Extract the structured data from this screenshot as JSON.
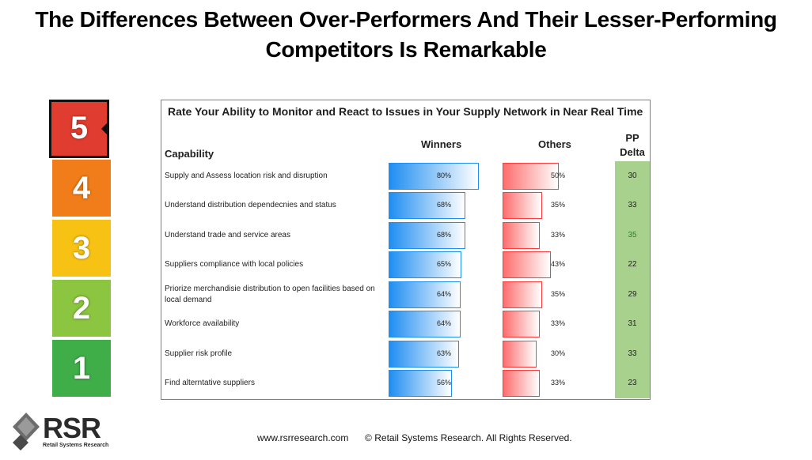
{
  "slide": {
    "title": "The Differences Between Over-Performers And Their Lesser-Performing Competitors Is Remarkable",
    "footer_url": "www.rsrresearch.com",
    "footer_copyright": "© Retail Systems Research. All Rights Reserved."
  },
  "logo": {
    "name": "RSR",
    "tagline": "Retail Systems Research"
  },
  "scale": {
    "selected": "5",
    "items": [
      {
        "label": "5",
        "color": "#e03c2f"
      },
      {
        "label": "4",
        "color": "#f07d1a"
      },
      {
        "label": "3",
        "color": "#f8c214"
      },
      {
        "label": "2",
        "color": "#8cc53f"
      },
      {
        "label": "1",
        "color": "#3fae49"
      }
    ]
  },
  "chart_data": {
    "type": "bar",
    "title": "Rate Your Ability to Monitor and React to Issues in Your Supply Network in Near Real Time",
    "column_headers": {
      "capability": "Capability",
      "winners": "Winners",
      "others": "Others",
      "delta_line1": "PP",
      "delta_line2": "Delta"
    },
    "categories": [
      "Supply and Assess location risk and disruption",
      "Understand distribution dependecnies and status",
      "Understand trade and service areas",
      "Suppliers compliance with local policies",
      "Priorize merchandisie distribution to open facilities based on local demand",
      "Workforce availability",
      "Supplier risk profile",
      "Find alterntative suppliers"
    ],
    "series": [
      {
        "name": "Winners",
        "values": [
          80,
          68,
          68,
          65,
          64,
          64,
          63,
          56
        ],
        "labels": [
          "80%",
          "68%",
          "68%",
          "65%",
          "64%",
          "64%",
          "63%",
          "56%"
        ],
        "color": "#1f8ef1"
      },
      {
        "name": "Others",
        "values": [
          50,
          35,
          33,
          43,
          35,
          33,
          30,
          33
        ],
        "labels": [
          "50%",
          "35%",
          "33%",
          "43%",
          "35%",
          "33%",
          "30%",
          "33%"
        ],
        "color": "#ff6d6d"
      }
    ],
    "pp_delta": [
      "30",
      "33",
      "35",
      "22",
      "29",
      "31",
      "33",
      "23"
    ],
    "delta_color": "#a9d18e",
    "xlim": [
      0,
      100
    ]
  }
}
